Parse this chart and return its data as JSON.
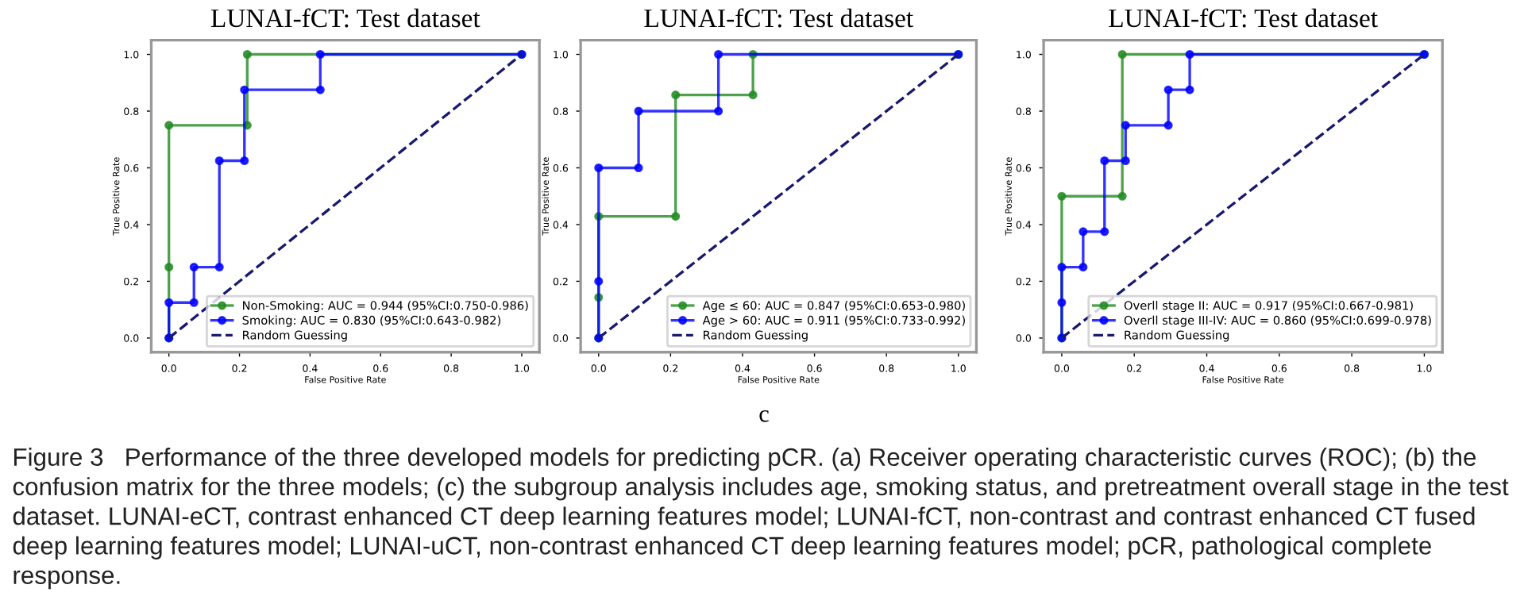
{
  "chart_data": [
    {
      "type": "line",
      "title": "LUNAI-fCT: Test dataset",
      "xlabel": "False Positive Rate",
      "ylabel": "True Positive Rate",
      "xlim": [
        -0.05,
        1.05
      ],
      "ylim": [
        -0.05,
        1.05
      ],
      "xticks": [
        {
          "value": 0,
          "label": "0.0"
        },
        {
          "value": 0.2,
          "label": "0.2"
        },
        {
          "value": 0.4,
          "label": "0.4"
        },
        {
          "value": 0.6,
          "label": "0.6"
        },
        {
          "value": 0.8,
          "label": "0.8"
        },
        {
          "value": 1,
          "label": "1.0"
        }
      ],
      "yticks": [
        {
          "value": 0,
          "label": "0.0"
        },
        {
          "value": 0.2,
          "label": "0.2"
        },
        {
          "value": 0.4,
          "label": "0.4"
        },
        {
          "value": 0.6,
          "label": "0.6"
        },
        {
          "value": 0.8,
          "label": "0.8"
        },
        {
          "value": 1,
          "label": "1.0"
        }
      ],
      "grid": false,
      "legend": "bottom right",
      "marker": "circle",
      "series": [
        {
          "name": "Non-Smoking: AUC = 0.944 (95%CI:0.750-0.986)",
          "color": "#228b22",
          "x": [
            0,
            0,
            0,
            0.222,
            0.222,
            1
          ],
          "values": [
            0,
            0.25,
            0.75,
            0.75,
            1.0,
            1.0
          ]
        },
        {
          "name": "Smoking: AUC = 0.830 (95%CI:0.643-0.982)",
          "color": "#0000ff",
          "x": [
            0,
            0,
            0.071,
            0.071,
            0.143,
            0.143,
            0.214,
            0.214,
            0.429,
            0.429,
            1
          ],
          "values": [
            0,
            0.125,
            0.125,
            0.25,
            0.25,
            0.625,
            0.625,
            0.875,
            0.875,
            1.0,
            1.0
          ]
        },
        {
          "name": "Random Guessing",
          "color": "#191970",
          "x": [
            0,
            1
          ],
          "values": [
            0,
            1
          ],
          "line_style": "dashed",
          "marker": "none"
        }
      ],
      "annotations": [
        "c",
        "Figure 3   Performance of the three developed models for predicting pCR. (a) Receiver operating characteristic curves (ROC); (b) the confusion matrix for the three models; (c) the subgroup analysis includes age, smoking status, and pretreatment overall stage in the test dataset. LUNAI-eCT, contrast enhanced CT deep learning features model; LUNAI-fCT, non-contrast and contrast enhanced CT fused deep learning features model; LUNAI-uCT, non-contrast enhanced CT deep learning features model; pCR, pathological complete response."
      ]
    },
    {
      "type": "line",
      "title": "LUNAI-fCT: Test dataset",
      "xlabel": "False Positive Rate",
      "ylabel": "True Positive Rate",
      "xlim": [
        -0.05,
        1.05
      ],
      "ylim": [
        -0.05,
        1.05
      ],
      "xticks": [
        {
          "value": 0,
          "label": "0.0"
        },
        {
          "value": 0.2,
          "label": "0.2"
        },
        {
          "value": 0.4,
          "label": "0.4"
        },
        {
          "value": 0.6,
          "label": "0.6"
        },
        {
          "value": 0.8,
          "label": "0.8"
        },
        {
          "value": 1,
          "label": "1.0"
        }
      ],
      "yticks": [
        {
          "value": 0,
          "label": "0.0"
        },
        {
          "value": 0.2,
          "label": "0.2"
        },
        {
          "value": 0.4,
          "label": "0.4"
        },
        {
          "value": 0.6,
          "label": "0.6"
        },
        {
          "value": 0.8,
          "label": "0.8"
        },
        {
          "value": 1,
          "label": "1.0"
        }
      ],
      "grid": false,
      "legend": "bottom right",
      "marker": "circle",
      "series": [
        {
          "name": "Age ≤ 60: AUC = 0.847 (95%CI:0.653-0.980)",
          "color": "#228b22",
          "x": [
            0,
            0,
            0,
            0.214,
            0.214,
            0.429,
            0.429,
            1
          ],
          "values": [
            0,
            0.143,
            0.429,
            0.429,
            0.857,
            0.857,
            1.0,
            1.0
          ]
        },
        {
          "name": "Age > 60: AUC = 0.911 (95%CI:0.733-0.992)",
          "color": "#0000ff",
          "x": [
            0,
            0,
            0,
            0.111,
            0.111,
            0.333,
            0.333,
            1
          ],
          "values": [
            0,
            0.2,
            0.6,
            0.6,
            0.8,
            0.8,
            1.0,
            1.0
          ]
        },
        {
          "name": "Random Guessing",
          "color": "#191970",
          "x": [
            0,
            1
          ],
          "values": [
            0,
            1
          ],
          "line_style": "dashed",
          "marker": "none"
        }
      ]
    },
    {
      "type": "line",
      "title": "LUNAI-fCT: Test dataset",
      "xlabel": "False Positive Rate",
      "ylabel": "True Positive Rate",
      "xlim": [
        -0.05,
        1.05
      ],
      "ylim": [
        -0.05,
        1.05
      ],
      "xticks": [
        {
          "value": 0,
          "label": "0.0"
        },
        {
          "value": 0.2,
          "label": "0.2"
        },
        {
          "value": 0.4,
          "label": "0.4"
        },
        {
          "value": 0.6,
          "label": "0.6"
        },
        {
          "value": 0.8,
          "label": "0.8"
        },
        {
          "value": 1,
          "label": "1.0"
        }
      ],
      "yticks": [
        {
          "value": 0,
          "label": "0.0"
        },
        {
          "value": 0.2,
          "label": "0.2"
        },
        {
          "value": 0.4,
          "label": "0.4"
        },
        {
          "value": 0.6,
          "label": "0.6"
        },
        {
          "value": 0.8,
          "label": "0.8"
        },
        {
          "value": 1,
          "label": "1.0"
        }
      ],
      "grid": false,
      "legend": "bottom right",
      "marker": "circle",
      "series": [
        {
          "name": "Overll stage II: AUC = 0.917 (95%CI:0.667-0.981)",
          "color": "#228b22",
          "x": [
            0,
            0,
            0.167,
            0.167,
            1
          ],
          "values": [
            0,
            0.5,
            0.5,
            1.0,
            1.0
          ]
        },
        {
          "name": "Overll stage III-IV: AUC = 0.860 (95%CI:0.699-0.978)",
          "color": "#0000ff",
          "x": [
            0,
            0,
            0,
            0.059,
            0.059,
            0.118,
            0.118,
            0.176,
            0.176,
            0.294,
            0.294,
            0.353,
            0.353,
            1
          ],
          "values": [
            0,
            0.125,
            0.25,
            0.25,
            0.375,
            0.375,
            0.625,
            0.625,
            0.75,
            0.75,
            0.875,
            0.875,
            1.0,
            1.0
          ]
        },
        {
          "name": "Random Guessing",
          "color": "#191970",
          "x": [
            0,
            1
          ],
          "values": [
            0,
            1
          ],
          "line_style": "dashed",
          "marker": "none"
        }
      ]
    }
  ]
}
